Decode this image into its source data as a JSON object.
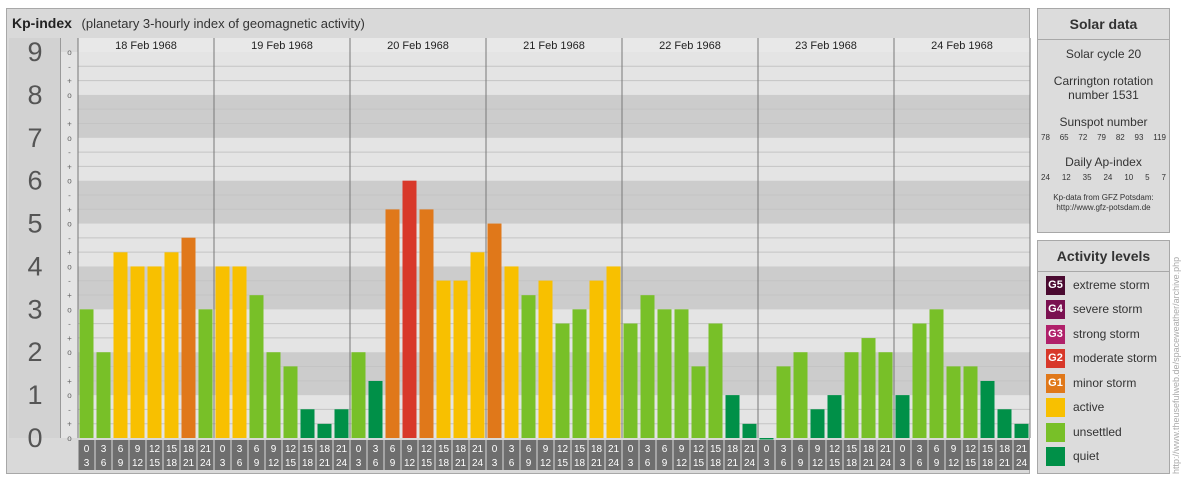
{
  "title": "Kp-index",
  "subtitle": "(planetary 3-hourly index of geomagnetic activity)",
  "chart_data": {
    "type": "bar",
    "y_axis_labels": [
      "0",
      "1",
      "2",
      "3",
      "4",
      "5",
      "6",
      "7",
      "8",
      "9"
    ],
    "minor_tick_labels": [
      "o",
      "+",
      "-"
    ],
    "ylim": [
      0,
      9
    ],
    "days": [
      "18 Feb 1968",
      "19 Feb 1968",
      "20 Feb 1968",
      "21 Feb 1968",
      "22 Feb 1968",
      "23 Feb 1968",
      "24 Feb 1968"
    ],
    "interval_start": [
      "0",
      "3",
      "6",
      "9",
      "12",
      "15",
      "18",
      "21"
    ],
    "interval_end": [
      "3",
      "6",
      "9",
      "12",
      "15",
      "18",
      "21",
      "24"
    ],
    "values": [
      [
        3.0,
        2.0,
        4.33,
        4.0,
        4.0,
        4.33,
        4.67,
        3.0
      ],
      [
        4.0,
        4.0,
        3.33,
        2.0,
        1.67,
        0.67,
        0.33,
        0.67
      ],
      [
        2.0,
        1.33,
        5.33,
        6.0,
        5.33,
        3.67,
        3.67,
        4.33
      ],
      [
        5.0,
        4.0,
        3.33,
        3.67,
        2.67,
        3.0,
        3.67,
        4.0
      ],
      [
        2.67,
        3.33,
        3.0,
        3.0,
        1.67,
        2.67,
        1.0,
        0.33
      ],
      [
        0.0,
        1.67,
        2.0,
        0.67,
        1.0,
        2.0,
        2.33,
        2.0
      ],
      [
        1.0,
        2.67,
        3.0,
        1.67,
        1.67,
        1.33,
        0.67,
        0.33
      ]
    ]
  },
  "solar": {
    "title": "Solar data",
    "cycle": "Solar cycle 20",
    "carrington_1": "Carrington rotation",
    "carrington_2": "number 1531",
    "sunspot_title": "Sunspot number",
    "sunspot_values": [
      "78",
      "65",
      "72",
      "79",
      "82",
      "93",
      "119"
    ],
    "ap_title": "Daily Ap-index",
    "ap_values": [
      "24",
      "12",
      "35",
      "24",
      "10",
      "5",
      "7"
    ],
    "source_1": "Kp-data from GFZ Potsdam:",
    "source_2": "http://www.gfz-potsdam.de"
  },
  "activity": {
    "title": "Activity levels",
    "levels": [
      {
        "code": "G5",
        "label": "extreme storm",
        "color": "#4a0a30"
      },
      {
        "code": "G4",
        "label": "severe storm",
        "color": "#7a1050"
      },
      {
        "code": "G3",
        "label": "strong storm",
        "color": "#b0206a"
      },
      {
        "code": "G2",
        "label": "moderate storm",
        "color": "#d8382a"
      },
      {
        "code": "G1",
        "label": "minor storm",
        "color": "#e0781a"
      },
      {
        "code": "",
        "label": "active",
        "color": "#f8c000"
      },
      {
        "code": "",
        "label": "unsettled",
        "color": "#78c028"
      },
      {
        "code": "",
        "label": "quiet",
        "color": "#009048"
      }
    ]
  },
  "credit": "http://www.theusefulweb.de/spaceweather/archive.php"
}
